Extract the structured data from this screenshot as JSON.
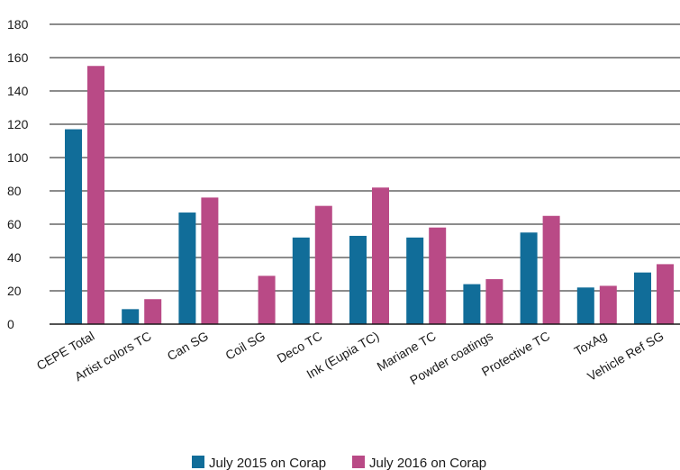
{
  "chart_data": {
    "type": "bar",
    "title": "",
    "xlabel": "",
    "ylabel": "",
    "ylim": [
      0,
      180
    ],
    "yticks": [
      "0",
      "20",
      "40",
      "60",
      "80",
      "100",
      "120",
      "140",
      "160",
      "180"
    ],
    "grid": "horizontal",
    "legend_position": "bottom",
    "categories": [
      "CEPE Total",
      "Artist colors TC",
      "Can SG",
      "Coil SG",
      "Deco TC",
      "Ink (Eupia TC)",
      "Mariane TC",
      "Powder coatings",
      "Protective TC",
      "ToxAg",
      "Vehicle Ref SG"
    ],
    "series": [
      {
        "name": "July 2015 on Corap",
        "color": "#116d99",
        "values": [
          117,
          9,
          67,
          0,
          52,
          53,
          52,
          24,
          55,
          22,
          31
        ]
      },
      {
        "name": "July 2016 on Corap",
        "color": "#b94a86",
        "values": [
          155,
          15,
          76,
          29,
          71,
          82,
          58,
          27,
          65,
          23,
          36
        ]
      }
    ]
  }
}
